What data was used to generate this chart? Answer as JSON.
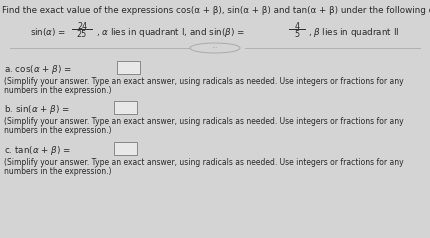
{
  "bg_color": "#d4d4d4",
  "title_line": "Find the exact value of the expressions cos(α + β), sin(α + β) and tan(α + β) under the following conditions",
  "part_a_label": "a. cos(α + β) =",
  "part_b_label": "b. sin(α + β) =",
  "part_c_label": "c. tan(α + β) =",
  "simplify_text_line1": "(Simplify your answer. Type an exact answer, using radicals as needed. Use integers or fractions for any",
  "simplify_text_line2": "numbers in the expression.)",
  "text_color": "#2a2a2a",
  "box_color": "#e8e8e8",
  "box_edge_color": "#888888",
  "divider_color": "#aaaaaa",
  "title_fontsize": 6.3,
  "label_fontsize": 6.3,
  "small_fontsize": 5.5
}
